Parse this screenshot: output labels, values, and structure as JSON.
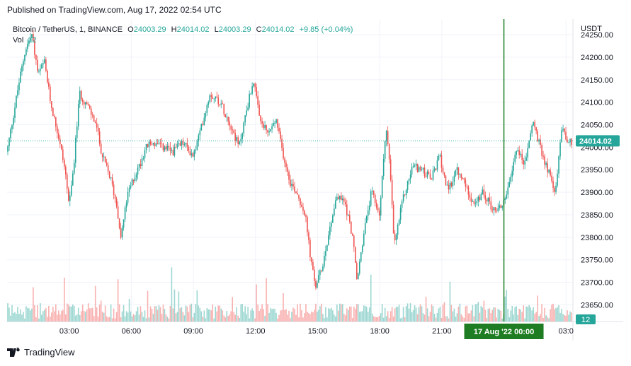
{
  "published": "Published on TradingView.com, Aug 17, 2022 02:54 UTC",
  "legend": {
    "symbol": "Bitcoin / TetherUS, 1, BINANCE",
    "o_label": "O",
    "o_value": "24003.29",
    "h_label": "H",
    "h_value": "24014.02",
    "l_label": "L",
    "l_value": "24003.29",
    "c_label": "C",
    "c_value": "24014.02",
    "change": "+9.85 (+0.04%)",
    "vol_label": "Vol",
    "vol_value": "12"
  },
  "footer": {
    "brand": "TradingView",
    "logo_icon": "tradingview-logo-icon"
  },
  "colors": {
    "up": "#26a69a",
    "down": "#ef5350",
    "marker": "#1e7d22",
    "price_tag": "#26a69a"
  },
  "chart_data": {
    "type": "candlestick",
    "title": "Bitcoin / TetherUS, 1, BINANCE",
    "currency": "USDT",
    "ylim": [
      23613,
      24283
    ],
    "y_ticks": [
      "24250.00",
      "24200.00",
      "24150.00",
      "24100.00",
      "24050.00",
      "24000.00",
      "23950.00",
      "23900.00",
      "23850.00",
      "23800.00",
      "23750.00",
      "23700.00",
      "23650.00"
    ],
    "x_ticks": [
      "03:00",
      "06:00",
      "09:00",
      "12:00",
      "15:00",
      "18:00",
      "21:00",
      "03:0"
    ],
    "x_tick_hours": [
      3,
      6,
      9,
      12,
      15,
      18,
      21,
      27
    ],
    "x_range_hours": [
      0.0,
      27.3
    ],
    "last_price": "24014.02",
    "last_volume": "12",
    "crosshair_label": "17 Aug '22   00:00",
    "crosshair_hour": 24.0,
    "price_keypoints": [
      [
        0.0,
        23990
      ],
      [
        0.3,
        24070
      ],
      [
        0.6,
        24150
      ],
      [
        0.9,
        24220
      ],
      [
        1.2,
        24250
      ],
      [
        1.5,
        24160
      ],
      [
        1.8,
        24190
      ],
      [
        2.1,
        24100
      ],
      [
        2.5,
        24020
      ],
      [
        2.8,
        23950
      ],
      [
        3.0,
        23870
      ],
      [
        3.2,
        23950
      ],
      [
        3.5,
        24120
      ],
      [
        3.9,
        24090
      ],
      [
        4.3,
        24050
      ],
      [
        4.6,
        23980
      ],
      [
        5.0,
        23930
      ],
      [
        5.3,
        23870
      ],
      [
        5.5,
        23800
      ],
      [
        5.8,
        23890
      ],
      [
        6.1,
        23930
      ],
      [
        6.4,
        23960
      ],
      [
        6.7,
        24000
      ],
      [
        7.0,
        24010
      ],
      [
        7.5,
        24000
      ],
      [
        8.0,
        23990
      ],
      [
        8.5,
        24010
      ],
      [
        9.0,
        23980
      ],
      [
        9.3,
        24030
      ],
      [
        9.8,
        24120
      ],
      [
        10.3,
        24100
      ],
      [
        10.8,
        24050
      ],
      [
        11.2,
        24000
      ],
      [
        11.6,
        24090
      ],
      [
        11.9,
        24150
      ],
      [
        12.2,
        24060
      ],
      [
        12.6,
        24030
      ],
      [
        13.0,
        24060
      ],
      [
        13.3,
        23990
      ],
      [
        13.7,
        23920
      ],
      [
        14.0,
        23900
      ],
      [
        14.4,
        23850
      ],
      [
        14.7,
        23740
      ],
      [
        14.9,
        23690
      ],
      [
        15.2,
        23730
      ],
      [
        15.5,
        23800
      ],
      [
        15.9,
        23890
      ],
      [
        16.3,
        23880
      ],
      [
        16.7,
        23800
      ],
      [
        16.9,
        23700
      ],
      [
        17.2,
        23800
      ],
      [
        17.6,
        23900
      ],
      [
        18.0,
        23850
      ],
      [
        18.3,
        24050
      ],
      [
        18.5,
        23950
      ],
      [
        18.7,
        23780
      ],
      [
        19.1,
        23880
      ],
      [
        19.6,
        23960
      ],
      [
        20.0,
        23950
      ],
      [
        20.5,
        23930
      ],
      [
        20.9,
        23980
      ],
      [
        21.3,
        23900
      ],
      [
        21.7,
        23950
      ],
      [
        22.1,
        23920
      ],
      [
        22.6,
        23870
      ],
      [
        23.0,
        23900
      ],
      [
        23.5,
        23860
      ],
      [
        23.9,
        23870
      ],
      [
        24.3,
        23920
      ],
      [
        24.6,
        24000
      ],
      [
        25.0,
        23960
      ],
      [
        25.4,
        24060
      ],
      [
        25.8,
        23990
      ],
      [
        26.2,
        23940
      ],
      [
        26.5,
        23900
      ],
      [
        26.8,
        24050
      ],
      [
        27.1,
        24010
      ],
      [
        27.3,
        24014
      ]
    ]
  }
}
